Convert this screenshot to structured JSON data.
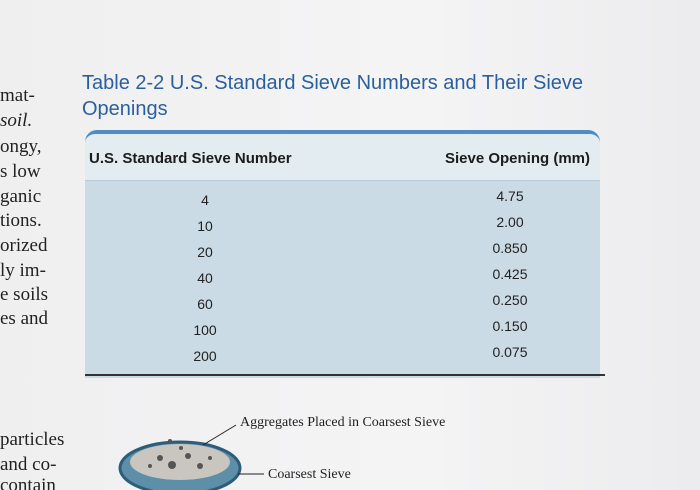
{
  "margin": [
    "mat-",
    "soil.",
    "ongy,",
    "s low",
    "ganic",
    "tions.",
    "orized",
    "ly im-",
    "e soils",
    "es and",
    "particles",
    "and co-",
    "contain"
  ],
  "table": {
    "title": "Table 2-2 U.S. Standard Sieve Numbers and Their Sieve Openings",
    "columns": [
      "U.S. Standard Sieve Number",
      "Sieve Opening (mm)"
    ],
    "rows": [
      [
        "4",
        "4.75"
      ],
      [
        "10",
        "2.00"
      ],
      [
        "20",
        "0.850"
      ],
      [
        "40",
        "0.425"
      ],
      [
        "60",
        "0.250"
      ],
      [
        "100",
        "0.150"
      ],
      [
        "200",
        "0.075"
      ]
    ]
  },
  "figure": {
    "labels": [
      "Aggregates Placed in Coarsest Sieve",
      "Coarsest Sieve"
    ]
  }
}
